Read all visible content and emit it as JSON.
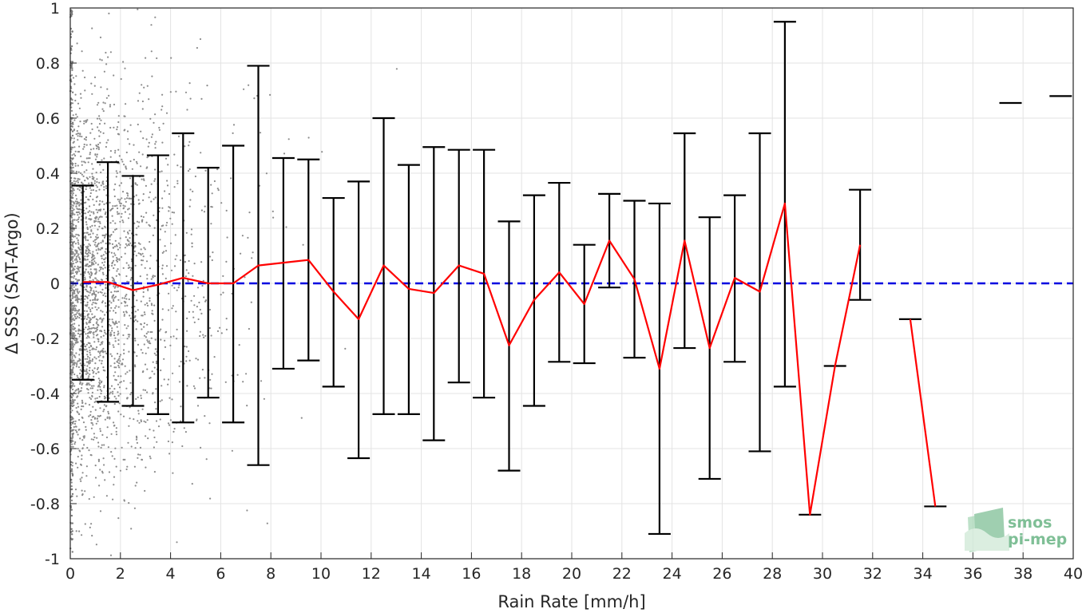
{
  "chart_data": {
    "type": "scatter",
    "title": "",
    "xlabel": "Rain Rate [mm/h]",
    "ylabel": "Δ SSS (SAT-Argo)",
    "xlim": [
      0,
      40
    ],
    "ylim": [
      -1,
      1
    ],
    "x_ticks": [
      "0",
      "2",
      "4",
      "6",
      "8",
      "10",
      "12",
      "14",
      "16",
      "18",
      "20",
      "22",
      "24",
      "26",
      "28",
      "30",
      "32",
      "34",
      "36",
      "38",
      "40"
    ],
    "y_ticks": [
      "-1",
      "-0.8",
      "-0.6",
      "-0.4",
      "-0.2",
      "0",
      "0.2",
      "0.4",
      "0.6",
      "0.8",
      "1"
    ],
    "grid": true,
    "legend": "none",
    "colors": {
      "scatter": "#8c8c8c",
      "mean_line": "#ff0000",
      "error_bar": "#000000",
      "zero_line": "#0000e0",
      "grid": "#e3e3e3",
      "axis": "#262626"
    },
    "reference_line": {
      "y": 0,
      "style": "dashed"
    },
    "binned_stats": [
      {
        "x": 0.5,
        "mean": 0.005,
        "low": -0.35,
        "high": 0.355
      },
      {
        "x": 1.5,
        "mean": 0.005,
        "low": -0.43,
        "high": 0.44
      },
      {
        "x": 2.5,
        "mean": -0.025,
        "low": -0.445,
        "high": 0.39
      },
      {
        "x": 3.5,
        "mean": -0.005,
        "low": -0.475,
        "high": 0.465
      },
      {
        "x": 4.5,
        "mean": 0.02,
        "low": -0.505,
        "high": 0.545
      },
      {
        "x": 5.5,
        "mean": 0.0,
        "low": -0.415,
        "high": 0.42
      },
      {
        "x": 6.5,
        "mean": 0.0,
        "low": -0.505,
        "high": 0.5
      },
      {
        "x": 7.5,
        "mean": 0.065,
        "low": -0.66,
        "high": 0.79
      },
      {
        "x": 8.5,
        "mean": 0.075,
        "low": -0.31,
        "high": 0.455
      },
      {
        "x": 9.5,
        "mean": 0.085,
        "low": -0.28,
        "high": 0.45
      },
      {
        "x": 10.5,
        "mean": -0.03,
        "low": -0.375,
        "high": 0.31
      },
      {
        "x": 11.5,
        "mean": -0.13,
        "low": -0.635,
        "high": 0.37
      },
      {
        "x": 12.5,
        "mean": 0.065,
        "low": -0.475,
        "high": 0.6
      },
      {
        "x": 13.5,
        "mean": -0.02,
        "low": -0.475,
        "high": 0.43
      },
      {
        "x": 14.5,
        "mean": -0.035,
        "low": -0.57,
        "high": 0.495
      },
      {
        "x": 15.5,
        "mean": 0.065,
        "low": -0.36,
        "high": 0.485
      },
      {
        "x": 16.5,
        "mean": 0.035,
        "low": -0.415,
        "high": 0.485
      },
      {
        "x": 17.5,
        "mean": -0.225,
        "low": -0.68,
        "high": 0.225
      },
      {
        "x": 18.5,
        "mean": -0.06,
        "low": -0.445,
        "high": 0.32
      },
      {
        "x": 19.5,
        "mean": 0.04,
        "low": -0.285,
        "high": 0.365
      },
      {
        "x": 20.5,
        "mean": -0.075,
        "low": -0.29,
        "high": 0.14
      },
      {
        "x": 21.5,
        "mean": 0.155,
        "low": -0.015,
        "high": 0.325
      },
      {
        "x": 22.5,
        "mean": 0.015,
        "low": -0.27,
        "high": 0.3
      },
      {
        "x": 23.5,
        "mean": -0.31,
        "low": -0.91,
        "high": 0.29
      },
      {
        "x": 24.5,
        "mean": 0.155,
        "low": -0.235,
        "high": 0.545
      },
      {
        "x": 25.5,
        "mean": -0.235,
        "low": -0.71,
        "high": 0.24
      },
      {
        "x": 26.5,
        "mean": 0.02,
        "low": -0.285,
        "high": 0.32
      },
      {
        "x": 27.5,
        "mean": -0.03,
        "low": -0.61,
        "high": 0.545
      },
      {
        "x": 28.5,
        "mean": 0.29,
        "low": -0.375,
        "high": 0.95
      },
      {
        "x": 29.5,
        "mean": -0.84,
        "low": -0.84,
        "high": -0.84
      },
      {
        "x": 30.5,
        "mean": -0.3,
        "low": -0.3,
        "high": -0.3
      },
      {
        "x": 31.5,
        "mean": 0.14,
        "low": -0.06,
        "high": 0.34
      },
      {
        "x": 33.5,
        "mean": -0.13,
        "low": -0.13,
        "high": -0.13
      },
      {
        "x": 34.5,
        "mean": -0.81,
        "low": -0.81,
        "high": -0.81
      },
      {
        "x": 37.5,
        "mean": 0.655,
        "low": 0.655,
        "high": 0.655
      },
      {
        "x": 39.5,
        "mean": 0.68,
        "low": 0.68,
        "high": 0.68
      }
    ],
    "mean_line_breaks_after_x": [
      31.5,
      34.5
    ],
    "scatter_description": "dense cloud of individual match-up points, most concentrated at rain rate below 2 mm/h, thinning out toward higher rain rates"
  },
  "watermark": {
    "line1": "smos",
    "line2": "pi-mep"
  }
}
